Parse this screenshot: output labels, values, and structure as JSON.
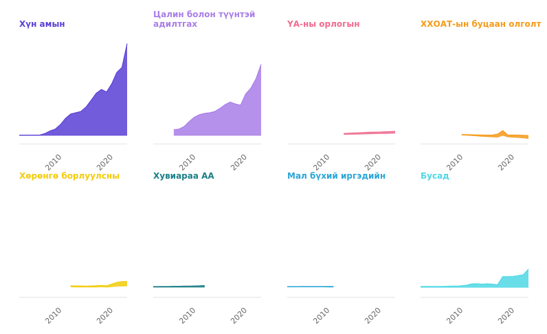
{
  "chart_data": [
    {
      "type": "area",
      "title": "Хүн амын",
      "color": "#5b3fd6",
      "x": [
        2003,
        2004,
        2005,
        2006,
        2007,
        2008,
        2009,
        2010,
        2011,
        2012,
        2013,
        2014,
        2015,
        2016,
        2017,
        2018,
        2019,
        2020,
        2021,
        2022,
        2023,
        2024
      ],
      "lower": [
        0,
        0,
        0,
        0,
        0,
        0,
        0,
        0,
        0,
        0,
        0,
        0,
        0,
        0,
        0,
        0,
        0,
        0,
        0,
        0,
        0,
        0
      ],
      "upper": [
        0.02,
        0.02,
        0.02,
        0.02,
        0.03,
        0.15,
        0.35,
        0.5,
        0.85,
        1.35,
        1.7,
        1.8,
        1.9,
        2.25,
        2.8,
        3.35,
        3.65,
        3.45,
        4.1,
        5.0,
        5.4,
        7.3
      ],
      "ylim": [
        0,
        8.2
      ],
      "x_ticks": [
        "2010",
        "2020"
      ]
    },
    {
      "type": "area",
      "title": "Цалин болон түүнтэй адилтгах",
      "color": "#a97ee8",
      "x": [
        2003,
        2004,
        2005,
        2006,
        2007,
        2008,
        2009,
        2010,
        2011,
        2012,
        2013,
        2014,
        2015,
        2016,
        2017,
        2018,
        2019,
        2020,
        2021,
        2022,
        2023,
        2024
      ],
      "lower": [
        null,
        null,
        null,
        null,
        0,
        0,
        0,
        0,
        0,
        0,
        0,
        0,
        0,
        0,
        0,
        0,
        0,
        0,
        0,
        0,
        0,
        0
      ],
      "upper": [
        null,
        null,
        null,
        null,
        0.45,
        0.5,
        0.7,
        1.1,
        1.45,
        1.65,
        1.75,
        1.8,
        1.9,
        2.15,
        2.45,
        2.65,
        2.5,
        2.4,
        3.3,
        3.75,
        4.5,
        5.65
      ],
      "ylim": [
        0,
        8.2
      ],
      "x_ticks": [
        "2010",
        "2020"
      ]
    },
    {
      "type": "area",
      "title": "ҮА-ны орлогын",
      "color": "#ef6c90",
      "x": [
        2003,
        2004,
        2005,
        2006,
        2007,
        2008,
        2009,
        2010,
        2011,
        2012,
        2013,
        2014,
        2015,
        2016,
        2017,
        2018,
        2019,
        2020,
        2021,
        2022,
        2023,
        2024
      ],
      "lower": [
        null,
        null,
        null,
        null,
        null,
        null,
        null,
        null,
        null,
        null,
        null,
        0.07,
        0.08,
        0.09,
        0.1,
        0.11,
        0.12,
        0.13,
        0.14,
        0.15,
        0.16,
        0.17
      ],
      "upper": [
        null,
        null,
        null,
        null,
        null,
        null,
        null,
        null,
        null,
        null,
        null,
        0.15,
        0.17,
        0.19,
        0.21,
        0.23,
        0.25,
        0.26,
        0.27,
        0.29,
        0.3,
        0.32
      ],
      "ylim": [
        -0.3,
        8.2
      ],
      "x_ticks": [
        "2010",
        "2020"
      ]
    },
    {
      "type": "area",
      "title": "ХХОАТ-ын буцаан олголт",
      "color": "#f59b1b",
      "x": [
        2003,
        2004,
        2005,
        2006,
        2007,
        2008,
        2009,
        2010,
        2011,
        2012,
        2013,
        2014,
        2015,
        2016,
        2017,
        2018,
        2019,
        2020,
        2021,
        2022,
        2023,
        2024
      ],
      "lower": [
        null,
        null,
        null,
        null,
        null,
        null,
        null,
        null,
        0.02,
        0.01,
        -0.02,
        -0.05,
        -0.08,
        -0.1,
        -0.13,
        -0.14,
        0.0,
        -0.12,
        -0.15,
        -0.17,
        -0.2,
        -0.25
      ],
      "upper": [
        null,
        null,
        null,
        null,
        null,
        null,
        null,
        null,
        0.06,
        0.06,
        0.05,
        0.04,
        0.03,
        0.02,
        0.03,
        0.1,
        0.38,
        0.02,
        0.03,
        0.02,
        0.01,
        -0.02
      ],
      "ylim": [
        -0.4,
        8.2
      ],
      "x_ticks": [
        "2010",
        "2020"
      ]
    },
    {
      "type": "area",
      "title": "Хөрөнгө борлуулсны",
      "color": "#f2cc0c",
      "x": [
        2003,
        2004,
        2005,
        2006,
        2007,
        2008,
        2009,
        2010,
        2011,
        2012,
        2013,
        2014,
        2015,
        2016,
        2017,
        2018,
        2019,
        2020,
        2021,
        2022,
        2023,
        2024
      ],
      "lower": [
        null,
        null,
        null,
        null,
        null,
        null,
        null,
        null,
        null,
        null,
        0.08,
        0.07,
        0.07,
        0.07,
        0.07,
        0.07,
        0.09,
        0.06,
        0.1,
        0.14,
        0.15,
        0.16
      ],
      "upper": [
        null,
        null,
        null,
        null,
        null,
        null,
        null,
        null,
        null,
        null,
        0.18,
        0.16,
        0.16,
        0.15,
        0.16,
        0.18,
        0.2,
        0.17,
        0.3,
        0.45,
        0.5,
        0.52
      ],
      "ylim": [
        -0.3,
        8.2
      ],
      "x_ticks": [
        "2010",
        "2020"
      ]
    },
    {
      "type": "area",
      "title": "Хувиараа АА",
      "color": "#1a7f86",
      "x": [
        2003,
        2004,
        2005,
        2006,
        2007,
        2008,
        2009,
        2010,
        2011,
        2012,
        2013,
        2014,
        2015,
        2016,
        2017,
        2018,
        2019,
        2020,
        2021,
        2022,
        2023,
        2024
      ],
      "lower": [
        0.06,
        0.06,
        0.06,
        0.06,
        0.06,
        0.06,
        0.06,
        0.06,
        0.06,
        0.06,
        0.06,
        null,
        null,
        null,
        null,
        null,
        null,
        null,
        null,
        null,
        null,
        null
      ],
      "upper": [
        0.11,
        0.11,
        0.12,
        0.12,
        0.13,
        0.13,
        0.14,
        0.15,
        0.16,
        0.17,
        0.19,
        null,
        null,
        null,
        null,
        null,
        null,
        null,
        null,
        null,
        null,
        null
      ],
      "ylim": [
        -0.3,
        8.2
      ],
      "x_ticks": [
        "2010",
        "2020"
      ]
    },
    {
      "type": "area",
      "title": "Мал бүхий иргэдийн",
      "color": "#2aa6d8",
      "x": [
        2003,
        2004,
        2005,
        2006,
        2007,
        2008,
        2009,
        2010,
        2011,
        2012,
        2013,
        2014,
        2015,
        2016,
        2017,
        2018,
        2019,
        2020,
        2021,
        2022,
        2023,
        2024
      ],
      "lower": [
        0.08,
        0.08,
        0.08,
        0.08,
        0.08,
        0.08,
        0.08,
        0.08,
        0.07,
        0.07,
        null,
        null,
        null,
        null,
        null,
        null,
        null,
        null,
        null,
        null,
        null,
        null
      ],
      "upper": [
        0.11,
        0.11,
        0.11,
        0.12,
        0.12,
        0.12,
        0.12,
        0.12,
        0.12,
        0.12,
        null,
        null,
        null,
        null,
        null,
        null,
        null,
        null,
        null,
        null,
        null,
        null
      ],
      "ylim": [
        -0.3,
        8.2
      ],
      "x_ticks": [
        "2010",
        "2020"
      ]
    },
    {
      "type": "area",
      "title": "Бусад",
      "color": "#4fd8e4",
      "x": [
        2003,
        2004,
        2005,
        2006,
        2007,
        2008,
        2009,
        2010,
        2011,
        2012,
        2013,
        2014,
        2015,
        2016,
        2017,
        2018,
        2019,
        2020,
        2021,
        2022,
        2023,
        2024
      ],
      "lower": [
        0.05,
        0.05,
        0.05,
        0.05,
        0.05,
        0.05,
        0.05,
        0.05,
        0.05,
        0.05,
        0.05,
        0.05,
        0.05,
        0.05,
        0.05,
        0.05,
        0.05,
        0.05,
        0.05,
        0.05,
        0.05,
        0.05
      ],
      "upper": [
        0.12,
        0.12,
        0.12,
        0.12,
        0.12,
        0.13,
        0.14,
        0.15,
        0.17,
        0.22,
        0.33,
        0.33,
        0.3,
        0.33,
        0.3,
        0.25,
        0.9,
        0.9,
        0.92,
        0.98,
        1.05,
        1.5
      ],
      "ylim": [
        -0.3,
        8.2
      ],
      "x_ticks": [
        "2010",
        "2020"
      ]
    }
  ]
}
